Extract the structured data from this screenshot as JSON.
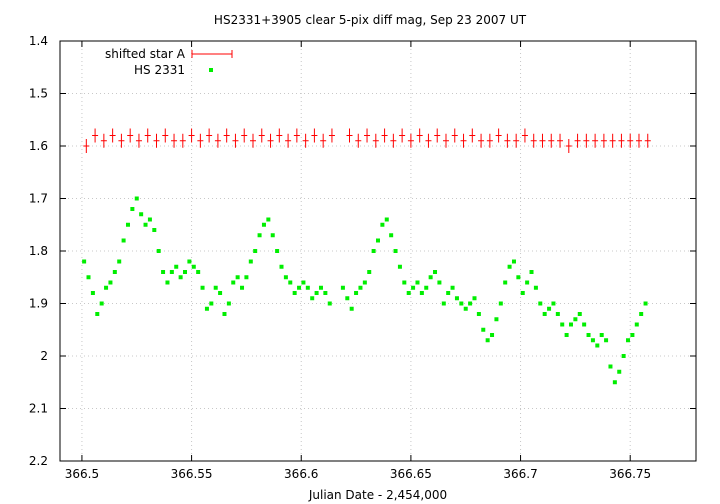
{
  "chart_data": {
    "type": "scatter",
    "title": "HS2331+3905 clear 5-pix diff mag, Sep 23 2007 UT",
    "xlabel": "Julian Date - 2,454,000",
    "ylabel": "",
    "xlim": [
      366.49,
      366.78
    ],
    "ylim": [
      1.4,
      2.2
    ],
    "y_inverted": true,
    "grid": true,
    "legend_position": "top-left",
    "xticks": [
      366.5,
      366.55,
      366.6,
      366.65,
      366.7,
      366.75
    ],
    "xtick_labels": [
      "366.5",
      "366.55",
      "366.6",
      "366.65",
      "366.7",
      "366.75"
    ],
    "yticks": [
      1.4,
      1.5,
      1.6,
      1.7,
      1.8,
      1.9,
      2.0,
      2.1,
      2.2
    ],
    "ytick_labels": [
      "1.4",
      "1.5",
      "1.6",
      "1.7",
      "1.8",
      "1.9",
      "2",
      "2.1",
      "2.2"
    ],
    "series": [
      {
        "name": "shifted star A",
        "color": "#ff0000",
        "marker": "plus-errorbar",
        "x": [
          366.502,
          366.506,
          366.51,
          366.514,
          366.518,
          366.522,
          366.526,
          366.53,
          366.534,
          366.538,
          366.542,
          366.546,
          366.55,
          366.554,
          366.558,
          366.562,
          366.566,
          366.57,
          366.574,
          366.578,
          366.582,
          366.586,
          366.59,
          366.594,
          366.598,
          366.602,
          366.606,
          366.61,
          366.614,
          366.622,
          366.626,
          366.63,
          366.634,
          366.638,
          366.642,
          366.646,
          366.65,
          366.654,
          366.658,
          366.662,
          366.666,
          366.67,
          366.674,
          366.678,
          366.682,
          366.686,
          366.69,
          366.694,
          366.698,
          366.702,
          366.706,
          366.71,
          366.714,
          366.718,
          366.722,
          366.726,
          366.73,
          366.734,
          366.738,
          366.742,
          366.746,
          366.75,
          366.754,
          366.758
        ],
        "y": [
          1.6,
          1.58,
          1.59,
          1.58,
          1.59,
          1.58,
          1.59,
          1.58,
          1.59,
          1.58,
          1.59,
          1.59,
          1.58,
          1.59,
          1.58,
          1.59,
          1.58,
          1.59,
          1.58,
          1.59,
          1.58,
          1.59,
          1.58,
          1.59,
          1.58,
          1.59,
          1.58,
          1.59,
          1.58,
          1.58,
          1.59,
          1.58,
          1.59,
          1.58,
          1.59,
          1.58,
          1.59,
          1.58,
          1.59,
          1.58,
          1.59,
          1.58,
          1.59,
          1.58,
          1.59,
          1.59,
          1.58,
          1.59,
          1.59,
          1.58,
          1.59,
          1.59,
          1.59,
          1.59,
          1.6,
          1.59,
          1.59,
          1.59,
          1.59,
          1.59,
          1.59,
          1.59,
          1.59,
          1.59
        ]
      },
      {
        "name": "HS 2331",
        "color": "#00ee00",
        "marker": "square",
        "x": [
          366.501,
          366.503,
          366.505,
          366.507,
          366.509,
          366.511,
          366.513,
          366.515,
          366.517,
          366.519,
          366.521,
          366.523,
          366.525,
          366.527,
          366.529,
          366.531,
          366.533,
          366.535,
          366.537,
          366.539,
          366.541,
          366.543,
          366.545,
          366.547,
          366.549,
          366.551,
          366.553,
          366.555,
          366.557,
          366.559,
          366.561,
          366.563,
          366.565,
          366.567,
          366.569,
          366.571,
          366.573,
          366.575,
          366.577,
          366.579,
          366.581,
          366.583,
          366.585,
          366.587,
          366.589,
          366.591,
          366.593,
          366.595,
          366.597,
          366.599,
          366.601,
          366.603,
          366.605,
          366.607,
          366.609,
          366.611,
          366.613,
          366.619,
          366.621,
          366.623,
          366.625,
          366.627,
          366.629,
          366.631,
          366.633,
          366.635,
          366.637,
          366.639,
          366.641,
          366.643,
          366.645,
          366.647,
          366.649,
          366.651,
          366.653,
          366.655,
          366.657,
          366.659,
          366.661,
          366.663,
          366.665,
          366.667,
          366.669,
          366.671,
          366.673,
          366.675,
          366.677,
          366.679,
          366.681,
          366.683,
          366.685,
          366.687,
          366.689,
          366.691,
          366.693,
          366.695,
          366.697,
          366.699,
          366.701,
          366.703,
          366.705,
          366.707,
          366.709,
          366.711,
          366.713,
          366.715,
          366.717,
          366.719,
          366.721,
          366.723,
          366.725,
          366.727,
          366.729,
          366.731,
          366.733,
          366.735,
          366.737,
          366.739,
          366.741,
          366.743,
          366.745,
          366.747,
          366.749,
          366.751,
          366.753,
          366.755,
          366.757
        ],
        "y": [
          1.82,
          1.85,
          1.88,
          1.92,
          1.9,
          1.87,
          1.86,
          1.84,
          1.82,
          1.78,
          1.75,
          1.72,
          1.7,
          1.73,
          1.75,
          1.74,
          1.76,
          1.8,
          1.84,
          1.86,
          1.84,
          1.83,
          1.85,
          1.84,
          1.82,
          1.83,
          1.84,
          1.87,
          1.91,
          1.9,
          1.87,
          1.88,
          1.92,
          1.9,
          1.86,
          1.85,
          1.87,
          1.85,
          1.82,
          1.8,
          1.77,
          1.75,
          1.74,
          1.77,
          1.8,
          1.83,
          1.85,
          1.86,
          1.88,
          1.87,
          1.86,
          1.87,
          1.89,
          1.88,
          1.87,
          1.88,
          1.9,
          1.87,
          1.89,
          1.91,
          1.88,
          1.87,
          1.86,
          1.84,
          1.8,
          1.78,
          1.75,
          1.74,
          1.77,
          1.8,
          1.83,
          1.86,
          1.88,
          1.87,
          1.86,
          1.88,
          1.87,
          1.85,
          1.84,
          1.86,
          1.9,
          1.88,
          1.87,
          1.89,
          1.9,
          1.91,
          1.9,
          1.89,
          1.92,
          1.95,
          1.97,
          1.96,
          1.93,
          1.9,
          1.86,
          1.83,
          1.82,
          1.85,
          1.88,
          1.86,
          1.84,
          1.87,
          1.9,
          1.92,
          1.91,
          1.9,
          1.92,
          1.94,
          1.96,
          1.94,
          1.93,
          1.92,
          1.94,
          1.96,
          1.97,
          1.98,
          1.96,
          1.97,
          2.02,
          2.05,
          2.03,
          2.0,
          1.97,
          1.96,
          1.94,
          1.92,
          1.9
        ]
      }
    ]
  }
}
